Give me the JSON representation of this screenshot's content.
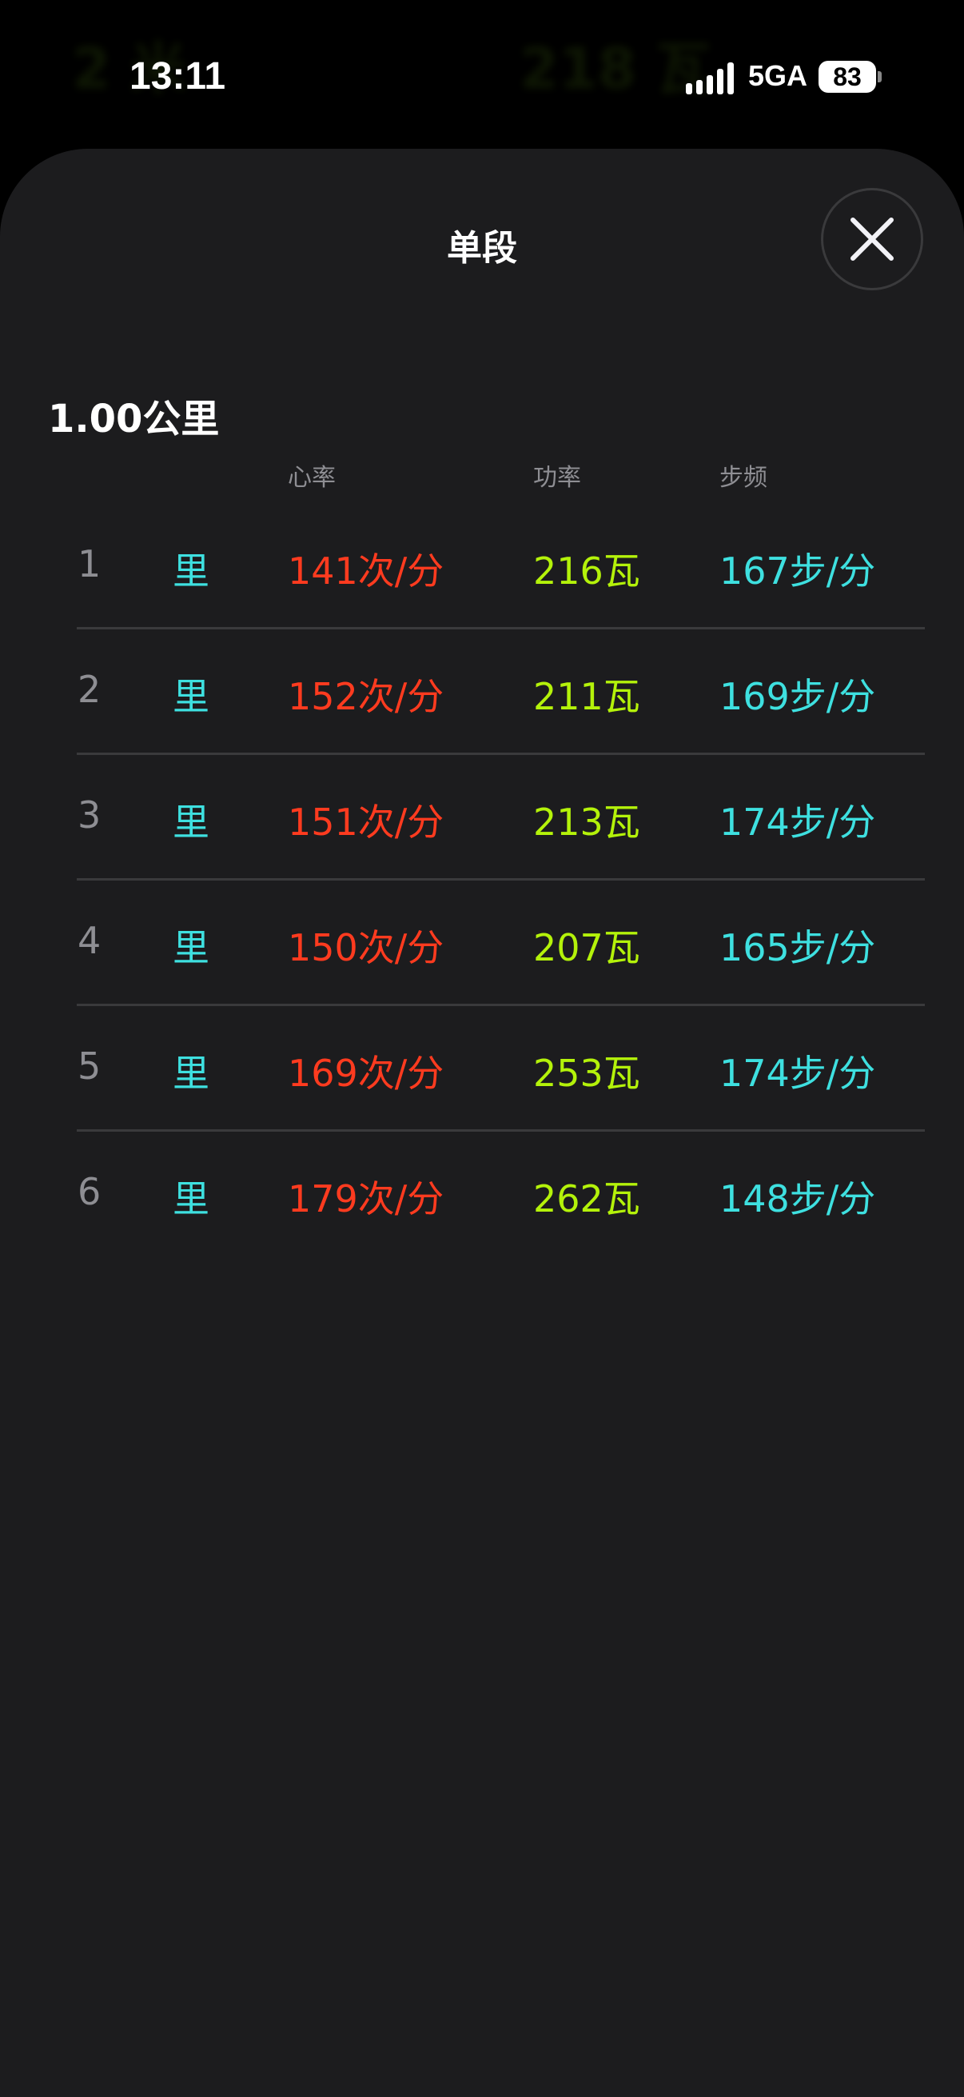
{
  "background": {
    "left_value": "2 米",
    "right_value": "218 瓦"
  },
  "status_bar": {
    "time": "13:11",
    "network": "5GA",
    "battery": "83"
  },
  "sheet": {
    "title": "单段",
    "close_icon": "close-x-icon"
  },
  "split_distance": "1.00公里",
  "columns": {
    "heart_rate": "心率",
    "power": "功率",
    "cadence": "步频"
  },
  "colors": {
    "heart_rate": "#ff3b1f",
    "power": "#b4f20a",
    "cadence": "#3ee0e0",
    "unit": "#3ee0e0"
  },
  "rows": [
    {
      "index": "1",
      "unit": "里",
      "heart_rate": "141次/分",
      "power": "216瓦",
      "cadence": "167步/分"
    },
    {
      "index": "2",
      "unit": "里",
      "heart_rate": "152次/分",
      "power": "211瓦",
      "cadence": "169步/分"
    },
    {
      "index": "3",
      "unit": "里",
      "heart_rate": "151次/分",
      "power": "213瓦",
      "cadence": "174步/分"
    },
    {
      "index": "4",
      "unit": "里",
      "heart_rate": "150次/分",
      "power": "207瓦",
      "cadence": "165步/分"
    },
    {
      "index": "5",
      "unit": "里",
      "heart_rate": "169次/分",
      "power": "253瓦",
      "cadence": "174步/分"
    },
    {
      "index": "6",
      "unit": "里",
      "heart_rate": "179次/分",
      "power": "262瓦",
      "cadence": "148步/分"
    }
  ]
}
